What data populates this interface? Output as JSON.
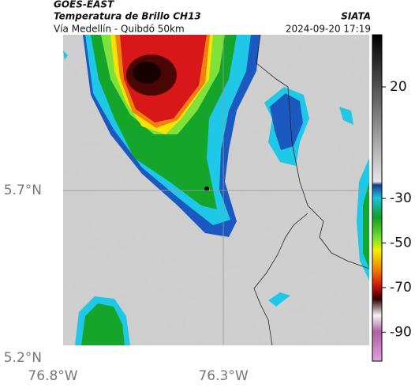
{
  "header": {
    "source": "GOES-EAST",
    "title": "Temperatura de Brillo CH13",
    "brand": "SIATA",
    "subtitle": "Vía Medellín - Quibdó 50km",
    "datetime": "2024-09-20 17:19"
  },
  "map": {
    "xlim": [
      -76.8,
      -75.872
    ],
    "ylim": [
      5.2,
      6.165
    ],
    "xticks": [
      {
        "value": -76.8,
        "label": "76.8°W"
      },
      {
        "value": -76.3,
        "label": "76.3°W"
      }
    ],
    "yticks": [
      {
        "value": 5.7,
        "label": "5.7°N"
      },
      {
        "value": 5.2,
        "label": "5.2°N"
      }
    ]
  },
  "colorbar": {
    "lim": [
      -103,
      43.4
    ],
    "ticks": [
      20,
      -30,
      -50,
      -70,
      -90
    ]
  }
}
